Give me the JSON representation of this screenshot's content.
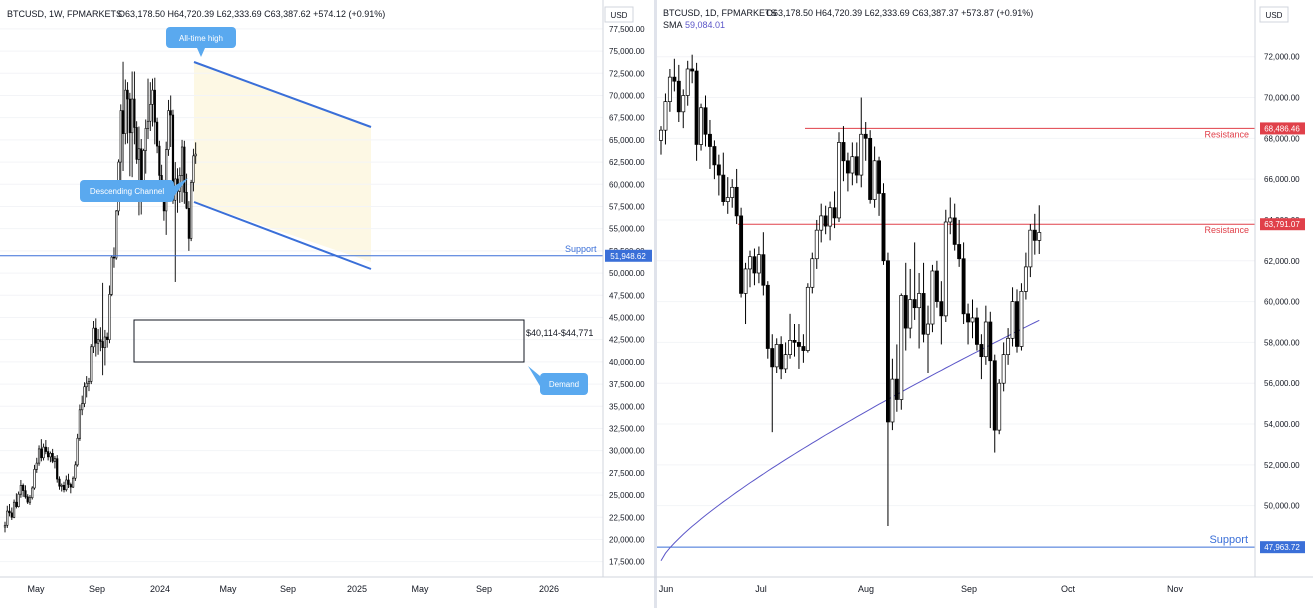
{
  "left_panel": {
    "header": "BTCUSD, 1W, FPMARKETS",
    "ohlc": "O63,178.50  H64,720.39  L62,333.69  C63,387.62  +574.12 (+0.91%)",
    "currency": "USD",
    "callouts": {
      "ath": "All-time high",
      "channel": "Descending Channel",
      "demand": "Demand",
      "support": "Support",
      "zone": "$40,114-$44,771"
    },
    "support_price": "51,948.62"
  },
  "right_panel": {
    "header": "BTCUSD, 1D, FPMARKETS",
    "ohlc": "O63,178.50  H64,720.39  L62,333.69  C63,387.37  +573.87 (+0.91%)",
    "sma_label": "SMA",
    "sma_value": "59,084.01",
    "currency": "USD",
    "resistance_label": "Resistance",
    "resistance_label_2": "Resistance",
    "support_label": "Support",
    "res1_price": "68,486.46",
    "res2_price": "63,791.07",
    "support_price": "47,963.72"
  },
  "colors": {
    "up": "#ffffff",
    "down": "#000000",
    "channel": "#3a6fd8",
    "channel_fill": "#fdf8e4",
    "support_line": "#3a6fd8",
    "resistance_line": "#e0404a",
    "sma": "#5b56c8",
    "callout": "#5aa9ef"
  },
  "chart_data": [
    {
      "type": "candlestick",
      "title": "BTCUSD, 1W, FPMARKETS",
      "y_axis_ticks": [
        17500,
        20000,
        22500,
        25000,
        27500,
        30000,
        32500,
        35000,
        37500,
        40000,
        42500,
        45000,
        47500,
        50000,
        52500,
        55000,
        57500,
        60000,
        62500,
        65000,
        67500,
        70000,
        72500,
        75000,
        77500
      ],
      "x_labels": [
        "May",
        "Sep",
        "2024",
        "May",
        "Sep",
        "2025",
        "May",
        "Sep",
        "2026"
      ],
      "ylim": [
        16000,
        78500
      ],
      "candles": [
        [
          21400,
          22000,
          20800,
          21600
        ],
        [
          21600,
          23800,
          21300,
          23200
        ],
        [
          23200,
          24000,
          22600,
          23000
        ],
        [
          23000,
          23600,
          22200,
          22500
        ],
        [
          22500,
          24500,
          22400,
          24200
        ],
        [
          24200,
          25200,
          23500,
          23700
        ],
        [
          23700,
          25400,
          23600,
          25100
        ],
        [
          25100,
          26700,
          24700,
          26100
        ],
        [
          26100,
          26300,
          24800,
          25500
        ],
        [
          25500,
          26100,
          24600,
          24800
        ],
        [
          24800,
          25100,
          24000,
          24200
        ],
        [
          24200,
          25000,
          23900,
          24700
        ],
        [
          24700,
          26000,
          24500,
          25800
        ],
        [
          25800,
          28400,
          25600,
          27900
        ],
        [
          27900,
          29200,
          27500,
          28600
        ],
        [
          28600,
          30600,
          28300,
          30200
        ],
        [
          30200,
          31300,
          28800,
          29200
        ],
        [
          29200,
          30800,
          28900,
          30400
        ],
        [
          30400,
          31200,
          29600,
          29900
        ],
        [
          29900,
          30400,
          28900,
          29300
        ],
        [
          29300,
          29900,
          28700,
          29700
        ],
        [
          29700,
          30200,
          28600,
          28800
        ],
        [
          28800,
          29400,
          28000,
          29100
        ],
        [
          29100,
          29500,
          26400,
          26800
        ],
        [
          26800,
          27100,
          25600,
          26000
        ],
        [
          26000,
          26300,
          25400,
          26100
        ],
        [
          26100,
          26500,
          25300,
          25600
        ],
        [
          25600,
          27200,
          25400,
          26700
        ],
        [
          26700,
          27400,
          25800,
          26200
        ],
        [
          26200,
          26400,
          25200,
          25900
        ],
        [
          25900,
          27100,
          25800,
          26900
        ],
        [
          26900,
          28800,
          26600,
          28400
        ],
        [
          28400,
          31900,
          28200,
          31400
        ],
        [
          31400,
          35200,
          31100,
          34600
        ],
        [
          34600,
          36200,
          34000,
          35300
        ],
        [
          35300,
          37700,
          34900,
          37200
        ],
        [
          37200,
          38400,
          36000,
          37600
        ],
        [
          37600,
          38200,
          36700,
          37800
        ],
        [
          37800,
          42000,
          37500,
          41700
        ],
        [
          41700,
          44600,
          41000,
          43800
        ],
        [
          43800,
          44900,
          40600,
          42100
        ],
        [
          42100,
          43700,
          40800,
          42500
        ],
        [
          42500,
          43900,
          41200,
          42300
        ],
        [
          42300,
          48900,
          38500,
          41600
        ],
        [
          41600,
          43600,
          39600,
          42800
        ],
        [
          42800,
          43300,
          41600,
          42500
        ],
        [
          42500,
          48600,
          42100,
          47600
        ],
        [
          47600,
          52000,
          47400,
          51800
        ],
        [
          51800,
          52900,
          50600,
          51700
        ],
        [
          51700,
          57100,
          51500,
          57000
        ],
        [
          57000,
          62800,
          56500,
          62500
        ],
        [
          62500,
          69000,
          59100,
          68300
        ],
        [
          68300,
          73800,
          61500,
          65700
        ],
        [
          65700,
          71800,
          64500,
          70600
        ],
        [
          70600,
          71500,
          64600,
          69600
        ],
        [
          69600,
          70300,
          60900,
          65800
        ],
        [
          65800,
          72700,
          60800,
          69600
        ],
        [
          69600,
          72700,
          64500,
          66400
        ],
        [
          66400,
          67100,
          62300,
          62800
        ],
        [
          62800,
          66500,
          56500,
          64000
        ],
        [
          64000,
          65100,
          56600,
          58500
        ],
        [
          58500,
          64000,
          58300,
          63800
        ],
        [
          63800,
          67300,
          61200,
          66300
        ],
        [
          66300,
          71900,
          65100,
          67100
        ],
        [
          67100,
          71500,
          66000,
          69000
        ],
        [
          69000,
          71900,
          66500,
          70600
        ],
        [
          70600,
          72000,
          64500,
          67000
        ],
        [
          67000,
          67500,
          63500,
          64300
        ],
        [
          64300,
          64900,
          60400,
          61000
        ],
        [
          61000,
          62200,
          58500,
          60000
        ],
        [
          60000,
          60500,
          55900,
          57000
        ],
        [
          57000,
          64800,
          54300,
          63900
        ],
        [
          63900,
          69500,
          63200,
          68300
        ],
        [
          68300,
          70000,
          64200,
          67800
        ],
        [
          67800,
          68400,
          57800,
          58200
        ],
        [
          58200,
          62500,
          49000,
          60600
        ],
        [
          60600,
          61800,
          56800,
          59200
        ],
        [
          59200,
          61900,
          57900,
          61000
        ],
        [
          61000,
          65000,
          58000,
          64200
        ],
        [
          64200,
          64900,
          57800,
          59100
        ],
        [
          59100,
          61200,
          57200,
          57300
        ],
        [
          57300,
          58100,
          52500,
          53900
        ],
        [
          53900,
          60500,
          53600,
          60200
        ],
        [
          60200,
          64000,
          59200,
          63200
        ],
        [
          63200,
          64720,
          62300,
          63400
        ]
      ]
    },
    {
      "type": "candlestick",
      "title": "BTCUSD, 1D, FPMARKETS",
      "y_axis_ticks": [
        50000,
        52000,
        54000,
        56000,
        58000,
        60000,
        62000,
        64000,
        66000,
        68000,
        70000,
        72000
      ],
      "x_labels": [
        "Jun",
        "Jul",
        "Aug",
        "Sep",
        "Oct",
        "Nov"
      ],
      "ylim": [
        46600,
        73800
      ],
      "sma_series_name": "SMA",
      "levels": {
        "resistance": [
          68486.46,
          63791.07
        ],
        "support": 47963.72
      },
      "candles": [
        [
          67900,
          68600,
          67200,
          68400
        ],
        [
          68400,
          70200,
          67700,
          69800
        ],
        [
          69800,
          71400,
          69300,
          71000
        ],
        [
          71000,
          71900,
          70300,
          70800
        ],
        [
          70800,
          71600,
          68800,
          69300
        ],
        [
          69300,
          70400,
          68500,
          70100
        ],
        [
          70100,
          71800,
          69600,
          71400
        ],
        [
          71400,
          72100,
          70700,
          71300
        ],
        [
          71300,
          71700,
          66900,
          67700
        ],
        [
          67700,
          69700,
          67400,
          69500
        ],
        [
          69500,
          70100,
          67600,
          68200
        ],
        [
          68200,
          68900,
          66500,
          67600
        ],
        [
          67600,
          67900,
          66000,
          66700
        ],
        [
          66700,
          67200,
          65200,
          66200
        ],
        [
          66200,
          67300,
          64700,
          64900
        ],
        [
          64900,
          66100,
          64300,
          65100
        ],
        [
          65100,
          66000,
          64600,
          65600
        ],
        [
          65600,
          66500,
          63800,
          64200
        ],
        [
          64200,
          64600,
          60200,
          60400
        ],
        [
          60400,
          61900,
          58900,
          61600
        ],
        [
          61600,
          62500,
          60700,
          62200
        ],
        [
          62200,
          62600,
          60800,
          61400
        ],
        [
          61400,
          62700,
          60900,
          62300
        ],
        [
          62300,
          63400,
          60300,
          60800
        ],
        [
          60800,
          61000,
          57200,
          57700
        ],
        [
          57700,
          58400,
          53600,
          56800
        ],
        [
          56800,
          58200,
          56500,
          57900
        ],
        [
          57900,
          58300,
          56200,
          56700
        ],
        [
          56700,
          58000,
          56500,
          57400
        ],
        [
          57400,
          59400,
          57200,
          58100
        ],
        [
          58100,
          58900,
          57300,
          58000
        ],
        [
          58000,
          58900,
          56700,
          57800
        ],
        [
          57800,
          58400,
          57000,
          57600
        ],
        [
          57600,
          60900,
          57500,
          60700
        ],
        [
          60700,
          62400,
          60400,
          62100
        ],
        [
          62100,
          64000,
          61600,
          63500
        ],
        [
          63500,
          64800,
          62900,
          64200
        ],
        [
          64200,
          64700,
          63300,
          63700
        ],
        [
          63700,
          64900,
          63000,
          64600
        ],
        [
          64600,
          65400,
          63600,
          64100
        ],
        [
          64100,
          68300,
          63900,
          67800
        ],
        [
          67800,
          68600,
          65900,
          66900
        ],
        [
          66900,
          67300,
          65400,
          66300
        ],
        [
          66300,
          67800,
          65700,
          67100
        ],
        [
          67100,
          67800,
          65800,
          66200
        ],
        [
          66200,
          70000,
          65600,
          68200
        ],
        [
          68200,
          68800,
          66900,
          68000
        ],
        [
          68000,
          68400,
          64800,
          65000
        ],
        [
          65000,
          67600,
          64600,
          66900
        ],
        [
          66900,
          67100,
          64200,
          65300
        ],
        [
          65300,
          65800,
          61800,
          62000
        ],
        [
          62000,
          62400,
          49000,
          54100
        ],
        [
          54100,
          57200,
          53700,
          56200
        ],
        [
          56200,
          57900,
          54600,
          55200
        ],
        [
          55200,
          60400,
          54700,
          60300
        ],
        [
          60300,
          61900,
          57600,
          58700
        ],
        [
          58700,
          61600,
          58200,
          60100
        ],
        [
          60100,
          62900,
          59100,
          59700
        ],
        [
          59700,
          61400,
          57700,
          60400
        ],
        [
          60400,
          61900,
          58000,
          58400
        ],
        [
          58400,
          59800,
          56500,
          58900
        ],
        [
          58900,
          61800,
          58500,
          61500
        ],
        [
          61500,
          62000,
          59700,
          60000
        ],
        [
          60000,
          61000,
          57900,
          59300
        ],
        [
          59300,
          64500,
          59000,
          63900
        ],
        [
          63900,
          65100,
          63300,
          64100
        ],
        [
          64100,
          64800,
          62500,
          62800
        ],
        [
          62800,
          64000,
          61700,
          62100
        ],
        [
          62100,
          62900,
          58900,
          59400
        ],
        [
          59400,
          59900,
          57900,
          59000
        ],
        [
          59000,
          60100,
          58200,
          59200
        ],
        [
          59200,
          59700,
          57600,
          57900
        ],
        [
          57900,
          58400,
          56200,
          57300
        ],
        [
          57300,
          59800,
          56900,
          59000
        ],
        [
          59000,
          59500,
          53800,
          57100
        ],
        [
          57100,
          57400,
          52600,
          53700
        ],
        [
          53700,
          56200,
          53500,
          56000
        ],
        [
          56000,
          58000,
          55600,
          57400
        ],
        [
          57400,
          58700,
          56900,
          58200
        ],
        [
          58200,
          60700,
          57800,
          60000
        ],
        [
          60000,
          60600,
          57500,
          57800
        ],
        [
          57800,
          60900,
          57600,
          60500
        ],
        [
          60500,
          62400,
          60100,
          61700
        ],
        [
          61700,
          63800,
          61200,
          63500
        ],
        [
          63500,
          64300,
          62300,
          63000
        ],
        [
          63000,
          64720,
          62333,
          63387
        ]
      ]
    }
  ]
}
